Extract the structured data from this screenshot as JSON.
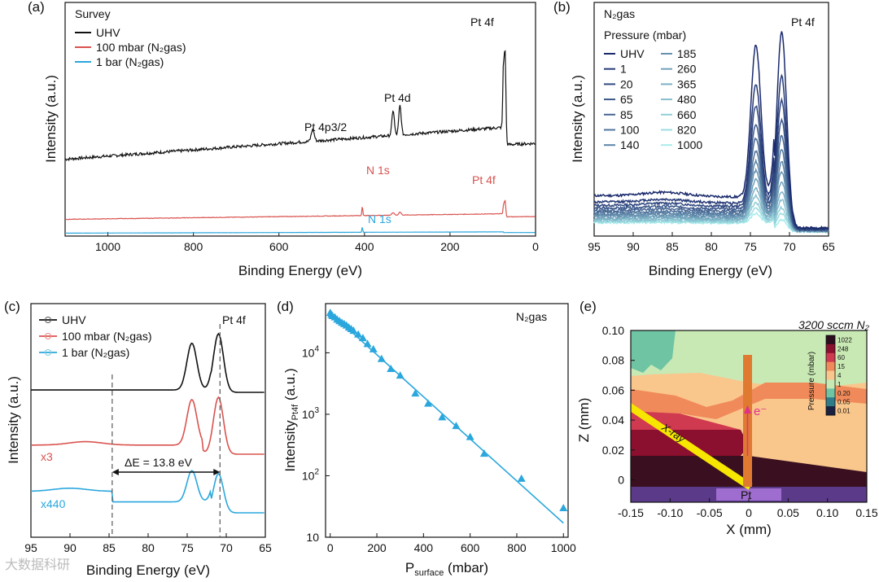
{
  "watermark": "大数据科研",
  "chart_data": [
    {
      "id": "a",
      "type": "line",
      "panel_label": "(a)",
      "legend_title": "Survey",
      "xlabel": "Binding Energy (eV)",
      "ylabel": "Intensity (a.u.)",
      "xlim": [
        1100,
        0
      ],
      "xticks": [
        1000,
        800,
        600,
        400,
        200,
        0
      ],
      "series": [
        {
          "name": "UHV",
          "color": "#111111",
          "offset": 0.55
        },
        {
          "name": "100 mbar (N₂gas)",
          "color": "#d9534f",
          "offset": 0.1
        },
        {
          "name": "1 bar (N₂gas)",
          "color": "#2aa7dd",
          "offset": 0.0
        }
      ],
      "annotations": [
        "Pt 4f",
        "Pt 4d",
        "Pt 4p3/2",
        "N 1s",
        "Pt 4f",
        "N 1s"
      ]
    },
    {
      "id": "b",
      "type": "line",
      "panel_label": "(b)",
      "legend_title": "N₂gas",
      "legend_subtitle": "Pressure (mbar)",
      "peak_label": "Pt 4f",
      "xlabel": "Binding Energy (eV)",
      "ylabel": "Intensity (a.u.)",
      "xlim": [
        95,
        65
      ],
      "xticks": [
        95,
        90,
        85,
        80,
        75,
        70,
        65
      ],
      "pressures": [
        "UHV",
        "1",
        "20",
        "65",
        "85",
        "100",
        "140",
        "185",
        "260",
        "365",
        "480",
        "660",
        "820",
        "1000"
      ],
      "peak_heights": [
        1.0,
        0.78,
        0.66,
        0.56,
        0.48,
        0.41,
        0.35,
        0.3,
        0.25,
        0.2,
        0.16,
        0.12,
        0.09,
        0.06
      ],
      "color_start": "#1a2a6c",
      "color_end": "#a8ecec"
    },
    {
      "id": "c",
      "type": "line",
      "panel_label": "(c)",
      "peak_label": "Pt 4f",
      "xlabel": "Binding Energy (eV)",
      "ylabel": "Intensity (a.u.)",
      "xlim": [
        95,
        65
      ],
      "xticks": [
        95,
        90,
        85,
        80,
        75,
        70,
        65
      ],
      "series": [
        {
          "name": "UHV",
          "color": "#111111",
          "scale_label": ""
        },
        {
          "name": "100 mbar (N₂gas)",
          "color": "#d9534f",
          "scale_label": "x3"
        },
        {
          "name": "1 bar (N₂gas)",
          "color": "#2aa7dd",
          "scale_label": "x440"
        }
      ],
      "dashed_lines_x": [
        84.6,
        70.8
      ],
      "delta_label": "ΔE = 13.8 eV"
    },
    {
      "id": "d",
      "type": "scatter",
      "panel_label": "(d)",
      "legend_label": "N₂gas",
      "xlabel": "P",
      "xlabel_sub": "surface",
      "xlabel_unit": " (mbar)",
      "ylabel": "Intensity",
      "ylabel_sub": "Pt4f",
      "ylabel_unit": " (a.u.)",
      "xlim": [
        -20,
        1020
      ],
      "xticks": [
        0,
        200,
        400,
        600,
        800,
        1000
      ],
      "ylim_log10": [
        1.0,
        4.8
      ],
      "yticks": [
        {
          "value": 10,
          "label": "10",
          "sup": ""
        },
        {
          "value": 100,
          "label": "10",
          "sup": "2"
        },
        {
          "value": 1000,
          "label": "10",
          "sup": "3"
        },
        {
          "value": 10000,
          "label": "10",
          "sup": "4"
        }
      ],
      "color": "#2aa7dd",
      "points": [
        [
          0,
          45000
        ],
        [
          5,
          42000
        ],
        [
          10,
          40000
        ],
        [
          20,
          38000
        ],
        [
          30,
          35000
        ],
        [
          40,
          33000
        ],
        [
          50,
          31000
        ],
        [
          60,
          29500
        ],
        [
          70,
          28000
        ],
        [
          80,
          26000
        ],
        [
          90,
          24500
        ],
        [
          100,
          23000
        ],
        [
          120,
          20000
        ],
        [
          140,
          17500
        ],
        [
          160,
          14000
        ],
        [
          185,
          11500
        ],
        [
          220,
          8000
        ],
        [
          260,
          5500
        ],
        [
          300,
          4300
        ],
        [
          365,
          2200
        ],
        [
          420,
          1500
        ],
        [
          480,
          900
        ],
        [
          540,
          650
        ],
        [
          600,
          430
        ],
        [
          660,
          230
        ],
        [
          820,
          90
        ],
        [
          1000,
          30
        ]
      ],
      "fit_line": [
        [
          0,
          45000
        ],
        [
          1000,
          17
        ]
      ]
    },
    {
      "id": "e",
      "type": "heatmap",
      "panel_label": "(e)",
      "title": "3200 sccm N₂",
      "xlabel": "X (mm)",
      "ylabel": "Z (mm)",
      "xlim": [
        -0.15,
        0.15
      ],
      "ylim": [
        -0.015,
        0.1
      ],
      "xticks": [
        "-0.15",
        "-0.10",
        "-0.05",
        "0",
        "0.05",
        "0.10",
        "0.15"
      ],
      "yticks": [
        "0",
        "0.02",
        "0.04",
        "0.06",
        "0.08",
        "0.10"
      ],
      "colorbar_title": "Pressure (mbar)",
      "colorbar_ticks": [
        "1022",
        "248",
        "60",
        "15",
        "4",
        "1",
        "0.20",
        "0.05",
        "0.01"
      ],
      "colorbar_colors": [
        "#2b0d1e",
        "#8b0f2e",
        "#d03a50",
        "#f08a5a",
        "#f9c68c",
        "#c9e9b4",
        "#6fc4a4",
        "#2e7b8a",
        "#1a2040"
      ],
      "labels": {
        "xray": "X-ray",
        "electron": "e⁻",
        "sample": "Pt"
      }
    }
  ]
}
